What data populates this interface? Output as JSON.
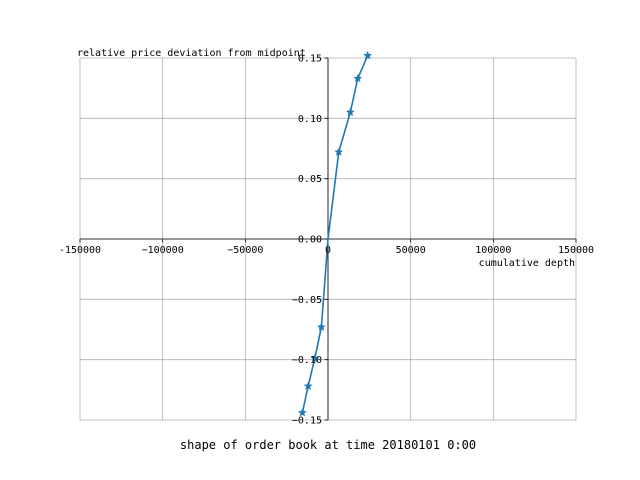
{
  "chart_data": {
    "type": "line",
    "title": "shape of order book at time 20180101 0:00",
    "xlabel": "cumulative depth",
    "ylabel": "relative price deviation from midpoint",
    "xlim": [
      -150000,
      150000
    ],
    "ylim": [
      -0.15,
      0.15
    ],
    "x_ticks": [
      -150000,
      -100000,
      -50000,
      0,
      50000,
      100000,
      150000
    ],
    "x_tick_labels": [
      "-150000",
      "−100000",
      "−50000",
      "0",
      "50000",
      "100000",
      "150000"
    ],
    "y_ticks": [
      -0.15,
      -0.1,
      -0.05,
      0.0,
      0.05,
      0.1,
      0.15
    ],
    "y_tick_labels": [
      "−0.15",
      "−0.10",
      "−0.05",
      "0.00",
      "0.05",
      "0.10",
      "0.15"
    ],
    "grid": true,
    "spines": "centered",
    "series": [
      {
        "color": "#1f77b4",
        "marker": "star",
        "x": [
          -15500,
          -12000,
          -8000,
          -4000,
          0,
          6500,
          13500,
          18000,
          24000
        ],
        "y": [
          -0.144,
          -0.122,
          -0.099,
          -0.073,
          0.0,
          0.072,
          0.105,
          0.133,
          0.152
        ]
      }
    ]
  }
}
